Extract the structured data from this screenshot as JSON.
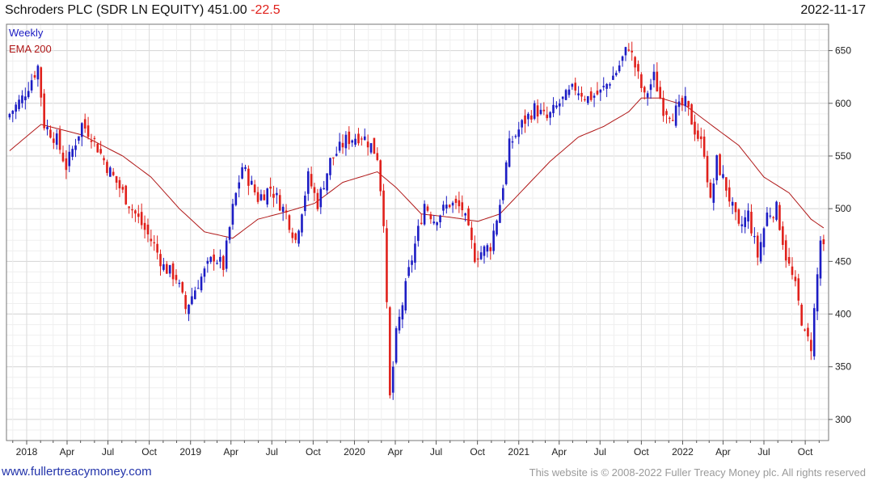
{
  "header": {
    "title": "Schroders PLC (SDR LN EQUITY) 451.00",
    "change": "-22.5",
    "date": "2022-11-17"
  },
  "footer": {
    "site": "www.fullertreacymoney.com",
    "copyright": "This website is © 2008-2022 Fuller Treacy Money plc. All rights reserved"
  },
  "colors": {
    "up": "#1c1cc4",
    "down": "#e0201b",
    "ema": "#b01818",
    "grid": "#e3e3e3",
    "axis": "#555555"
  },
  "chart_data": {
    "type": "candlestick",
    "legend": [
      {
        "label": "Weekly",
        "color": "#1c1cc4"
      },
      {
        "label": "EMA 200",
        "color": "#b01818"
      }
    ],
    "legend_position": "top-left",
    "ylim": [
      280,
      675
    ],
    "y_ticks": [
      300,
      350,
      400,
      450,
      500,
      550,
      600,
      650
    ],
    "x_ticks": [
      "2018",
      "Apr",
      "Jul",
      "Oct",
      "2019",
      "Apr",
      "Jul",
      "Oct",
      "2020",
      "Apr",
      "Jul",
      "Oct",
      "2021",
      "Apr",
      "Jul",
      "Oct",
      "2022",
      "Apr",
      "Jul",
      "Oct"
    ],
    "grid": true,
    "close_anchors": [
      [
        "2017-11-24",
        590
      ],
      [
        "2017-12-22",
        605
      ],
      [
        "2018-01-26",
        635
      ],
      [
        "2018-02-09",
        580
      ],
      [
        "2018-03-09",
        565
      ],
      [
        "2018-03-30",
        540
      ],
      [
        "2018-05-04",
        580
      ],
      [
        "2018-05-25",
        570
      ],
      [
        "2018-06-29",
        540
      ],
      [
        "2018-08-03",
        515
      ],
      [
        "2018-09-07",
        490
      ],
      [
        "2018-10-12",
        465
      ],
      [
        "2018-11-02",
        445
      ],
      [
        "2018-11-30",
        435
      ],
      [
        "2018-12-21",
        405
      ],
      [
        "2019-01-18",
        430
      ],
      [
        "2019-02-22",
        455
      ],
      [
        "2019-03-15",
        445
      ],
      [
        "2019-04-05",
        500
      ],
      [
        "2019-04-26",
        540
      ],
      [
        "2019-05-31",
        510
      ],
      [
        "2019-06-28",
        520
      ],
      [
        "2019-08-02",
        495
      ],
      [
        "2019-08-23",
        470
      ],
      [
        "2019-09-20",
        530
      ],
      [
        "2019-10-11",
        505
      ],
      [
        "2019-11-08",
        545
      ],
      [
        "2019-12-13",
        565
      ],
      [
        "2020-01-17",
        570
      ],
      [
        "2020-02-07",
        560
      ],
      [
        "2020-02-21",
        550
      ],
      [
        "2020-03-06",
        490
      ],
      [
        "2020-03-20",
        320
      ],
      [
        "2020-04-03",
        380
      ],
      [
        "2020-05-01",
        440
      ],
      [
        "2020-06-05",
        505
      ],
      [
        "2020-06-26",
        490
      ],
      [
        "2020-07-31",
        505
      ],
      [
        "2020-08-28",
        500
      ],
      [
        "2020-09-25",
        455
      ],
      [
        "2020-10-30",
        465
      ],
      [
        "2020-11-20",
        505
      ],
      [
        "2020-12-11",
        560
      ],
      [
        "2021-01-08",
        580
      ],
      [
        "2021-02-05",
        595
      ],
      [
        "2021-03-05",
        585
      ],
      [
        "2021-04-02",
        600
      ],
      [
        "2021-05-07",
        615
      ],
      [
        "2021-06-04",
        605
      ],
      [
        "2021-07-02",
        610
      ],
      [
        "2021-08-06",
        630
      ],
      [
        "2021-09-03",
        655
      ],
      [
        "2021-09-24",
        625
      ],
      [
        "2021-10-08",
        605
      ],
      [
        "2021-10-29",
        625
      ],
      [
        "2021-11-19",
        595
      ],
      [
        "2021-12-10",
        590
      ],
      [
        "2022-01-07",
        600
      ],
      [
        "2022-01-28",
        575
      ],
      [
        "2022-02-18",
        555
      ],
      [
        "2022-03-04",
        505
      ],
      [
        "2022-03-18",
        545
      ],
      [
        "2022-04-08",
        520
      ],
      [
        "2022-05-06",
        480
      ],
      [
        "2022-05-27",
        495
      ],
      [
        "2022-06-17",
        455
      ],
      [
        "2022-07-08",
        495
      ],
      [
        "2022-07-29",
        500
      ],
      [
        "2022-08-19",
        455
      ],
      [
        "2022-09-09",
        425
      ],
      [
        "2022-09-30",
        380
      ],
      [
        "2022-10-14",
        370
      ],
      [
        "2022-11-04",
        470
      ],
      [
        "2022-11-17",
        451
      ]
    ],
    "ema_anchors": [
      [
        "2017-11-24",
        555
      ],
      [
        "2018-02-02",
        580
      ],
      [
        "2018-05-04",
        570
      ],
      [
        "2018-08-03",
        550
      ],
      [
        "2018-10-05",
        530
      ],
      [
        "2018-12-07",
        500
      ],
      [
        "2019-02-01",
        478
      ],
      [
        "2019-04-05",
        472
      ],
      [
        "2019-05-31",
        490
      ],
      [
        "2019-08-02",
        497
      ],
      [
        "2019-10-04",
        505
      ],
      [
        "2019-12-06",
        525
      ],
      [
        "2020-02-21",
        535
      ],
      [
        "2020-04-03",
        520
      ],
      [
        "2020-05-29",
        495
      ],
      [
        "2020-07-31",
        492
      ],
      [
        "2020-10-02",
        488
      ],
      [
        "2020-11-20",
        495
      ],
      [
        "2021-01-15",
        520
      ],
      [
        "2021-03-12",
        545
      ],
      [
        "2021-05-14",
        568
      ],
      [
        "2021-07-09",
        578
      ],
      [
        "2021-09-03",
        592
      ],
      [
        "2021-10-01",
        605
      ],
      [
        "2021-11-12",
        605
      ],
      [
        "2022-01-07",
        598
      ],
      [
        "2022-03-04",
        580
      ],
      [
        "2022-05-06",
        560
      ],
      [
        "2022-07-01",
        530
      ],
      [
        "2022-08-26",
        515
      ],
      [
        "2022-10-14",
        490
      ],
      [
        "2022-11-17",
        480
      ]
    ]
  }
}
